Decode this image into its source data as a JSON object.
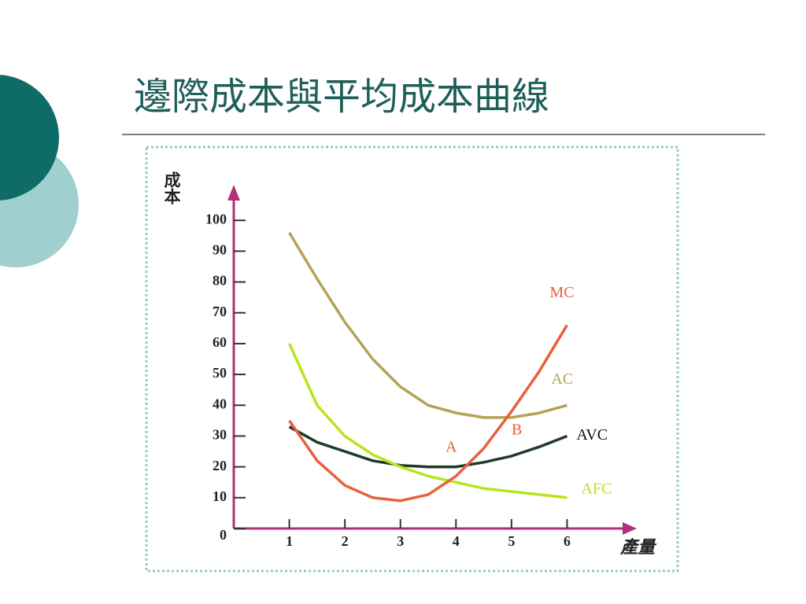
{
  "chart_data": {
    "type": "line",
    "title": "邊際成本與平均成本曲線",
    "y_label": "成本",
    "x_label": "產量",
    "x": [
      1,
      1.5,
      2,
      2.5,
      3,
      3.5,
      4,
      4.5,
      5,
      5.5,
      6
    ],
    "series": [
      {
        "name": "AC",
        "color": "#b5a255",
        "values": [
          96,
          81,
          67,
          55,
          46,
          40,
          37.5,
          36,
          36,
          37.5,
          40
        ]
      },
      {
        "name": "AVC",
        "color": "#1e3a2a",
        "values": [
          33,
          28,
          25,
          22,
          20.5,
          20,
          20,
          21.5,
          23.5,
          26.5,
          30
        ]
      },
      {
        "name": "AFC",
        "color": "#b5e61d",
        "values": [
          60,
          40,
          30,
          24,
          20,
          17,
          15,
          13,
          12,
          11,
          10
        ]
      },
      {
        "name": "MC",
        "color": "#e8603c",
        "values": [
          35,
          22,
          14,
          10,
          9,
          11,
          17,
          26,
          38,
          51,
          66
        ]
      }
    ],
    "annotations": [
      "A",
      "B"
    ],
    "xlim": [
      0,
      7
    ],
    "ylim": [
      0,
      110
    ],
    "xticks": [
      1,
      2,
      3,
      4,
      5,
      6
    ],
    "yticks": [
      0,
      10,
      20,
      30,
      40,
      50,
      60,
      70,
      80,
      90,
      100
    ],
    "axis_color": "#b0307a"
  }
}
